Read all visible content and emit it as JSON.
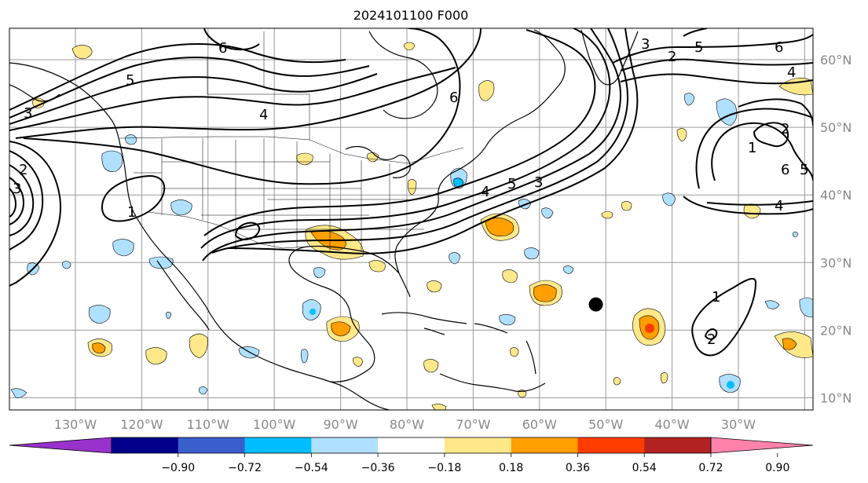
{
  "title": "2024101100 F000",
  "lon_labels": [
    "130°W",
    "120°W",
    "110°W",
    "100°W",
    "90°W",
    "80°W",
    "70°W",
    "60°W",
    "50°W",
    "40°W",
    "30°W"
  ],
  "lat_labels": [
    "60°N",
    "50°N",
    "40°N",
    "30°N",
    "20°N",
    "10°N"
  ],
  "colorbar": {
    "colors": [
      "#9932cc",
      "#00008b",
      "#3a5fcd",
      "#00bfff",
      "#afe0ff",
      "#ffffff",
      "#ffe88a",
      "#ff9f00",
      "#ff3c00",
      "#b22222",
      "#ff82ab"
    ],
    "tick_labels": [
      "−0.90",
      "−0.72",
      "−0.54",
      "−0.36",
      "−0.18",
      "0.18",
      "0.36",
      "0.54",
      "0.72",
      "0.90"
    ]
  },
  "contour_labels": [
    "6",
    "5",
    "4",
    "3",
    "2",
    "1",
    "6",
    "5",
    "4",
    "3",
    "6",
    "5",
    "4",
    "3",
    "2",
    "1",
    "6",
    "5",
    "4",
    "3",
    "2",
    "1",
    "2"
  ],
  "storm_marker": {
    "lon": -51.5,
    "lat": 23.8
  }
}
